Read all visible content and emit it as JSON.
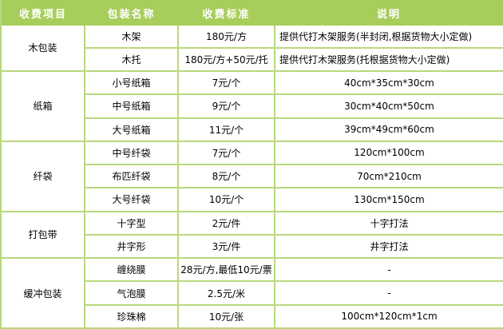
{
  "colors": {
    "header_bg": "#a7ce5a",
    "border_color": "#b9d87e",
    "header_text": "#ffffff",
    "body_text": "#000000"
  },
  "table": {
    "headers": [
      "收费项目",
      "包装名称",
      "收费标准",
      "说明"
    ],
    "groups": [
      {
        "item": "木包装",
        "rows": [
          {
            "name": "木架",
            "price": "180元/方",
            "desc": "提供代打木架服务(半封闭,根据货物大小定做)",
            "desc_align": "left"
          },
          {
            "name": "木托",
            "price": "180元/方+50元/托",
            "desc": "提供代打木架服务(托根据货物大小定做)",
            "desc_align": "left"
          }
        ]
      },
      {
        "item": "纸箱",
        "rows": [
          {
            "name": "小号纸箱",
            "price": "7元/个",
            "desc": "40cm*35cm*30cm"
          },
          {
            "name": "中号纸箱",
            "price": "9元/个",
            "desc": "30cm*40cm*50cm"
          },
          {
            "name": "大号纸箱",
            "price": "11元/个",
            "desc": "39cm*49cm*60cm"
          }
        ]
      },
      {
        "item": "纤袋",
        "rows": [
          {
            "name": "中号纤袋",
            "price": "7元/个",
            "desc": "120cm*100cm"
          },
          {
            "name": "布匹纤袋",
            "price": "8元/个",
            "desc": "70cm*210cm"
          },
          {
            "name": "大号纤袋",
            "price": "10元/个",
            "desc": "130cm*150cm"
          }
        ]
      },
      {
        "item": "打包带",
        "rows": [
          {
            "name": "十字型",
            "price": "2元/件",
            "desc": "十字打法"
          },
          {
            "name": "井字形",
            "price": "3元/件",
            "desc": "井字打法"
          }
        ]
      },
      {
        "item": "缓冲包装",
        "rows": [
          {
            "name": "缠绕膜",
            "price": "28元/方,最低10元/票",
            "desc": "-"
          },
          {
            "name": "气泡膜",
            "price": "2.5元/米",
            "desc": "-"
          },
          {
            "name": "珍珠棉",
            "price": "10元/张",
            "desc": "100cm*120cm*1cm"
          }
        ]
      }
    ]
  }
}
